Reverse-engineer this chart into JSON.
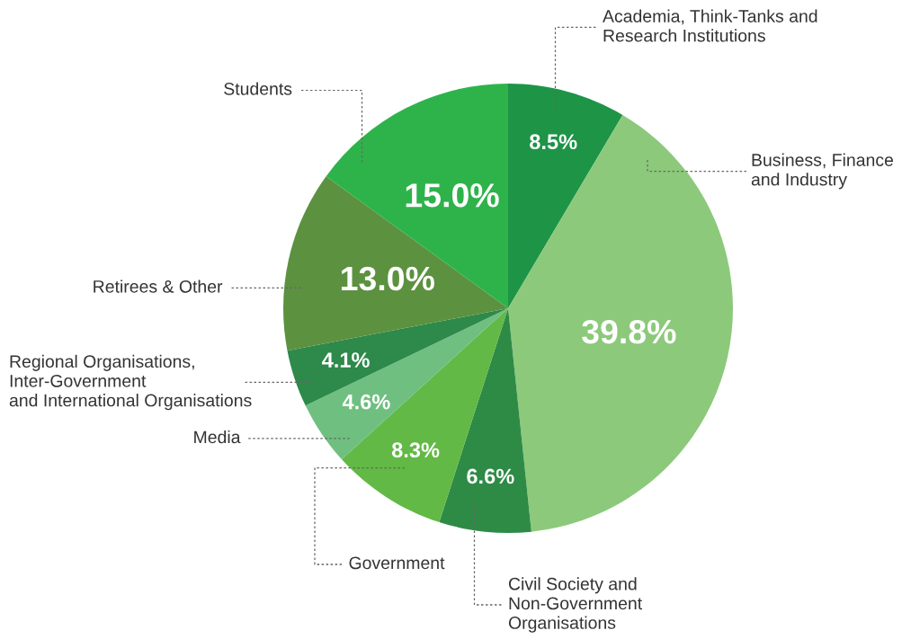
{
  "chart_data": {
    "type": "pie",
    "categories": [
      "Academia, Think-Tanks and\nResearch Institutions",
      "Business, Finance\nand Industry",
      "Civil Society and\nNon-Government\nOrganisations",
      "Government",
      "Media",
      "Regional Organisations,\nInter-Government\nand International Organisations",
      "Retirees & Other",
      "Students"
    ],
    "values": [
      8.5,
      39.8,
      6.6,
      8.3,
      4.6,
      4.1,
      13.0,
      15.0
    ],
    "colors": [
      "#1e9447",
      "#8cc97b",
      "#2e8b45",
      "#62b946",
      "#6fbf80",
      "#2d8a4a",
      "#5c9140",
      "#2eb34b"
    ],
    "value_labels": [
      "8.5%",
      "39.8%",
      "6.6%",
      "8.3%",
      "4.6%",
      "4.1%",
      "13.0%",
      "15.0%"
    ]
  }
}
